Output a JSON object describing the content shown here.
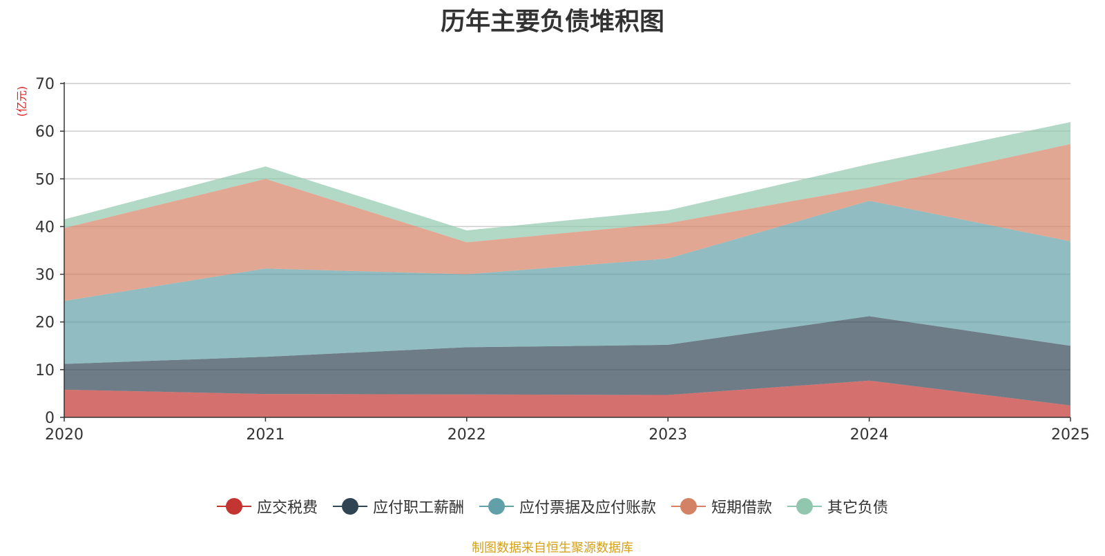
{
  "chart_data": {
    "type": "area",
    "stacked": true,
    "title": "历年主要负债堆积图",
    "ylabel": "(亿元)",
    "xlabel": "",
    "categories": [
      "2020",
      "2021",
      "2022",
      "2023",
      "2024",
      "2025"
    ],
    "ylim": [
      0,
      70
    ],
    "yticks": [
      0,
      10,
      20,
      30,
      40,
      50,
      60,
      70
    ],
    "grid": true,
    "legend_position": "bottom-center",
    "series": [
      {
        "name": "应交税费",
        "color": "#c23531",
        "values": [
          5.8,
          4.9,
          4.8,
          4.7,
          7.7,
          2.5
        ]
      },
      {
        "name": "应付职工薪酬",
        "color": "#2f4554",
        "values": [
          5.4,
          7.8,
          9.9,
          10.5,
          13.5,
          12.5
        ]
      },
      {
        "name": "应付票据及应付账款",
        "color": "#61a0a8",
        "values": [
          13.2,
          18.5,
          15.3,
          18.1,
          24.2,
          21.9
        ]
      },
      {
        "name": "短期借款",
        "color": "#d48265",
        "values": [
          15.3,
          18.8,
          6.7,
          7.4,
          2.8,
          20.4
        ]
      },
      {
        "name": "其它负债",
        "color": "#91c7ae",
        "values": [
          1.8,
          2.6,
          2.5,
          2.7,
          4.9,
          4.6
        ]
      }
    ]
  },
  "source_note": "制图数据来自恒生聚源数据库"
}
